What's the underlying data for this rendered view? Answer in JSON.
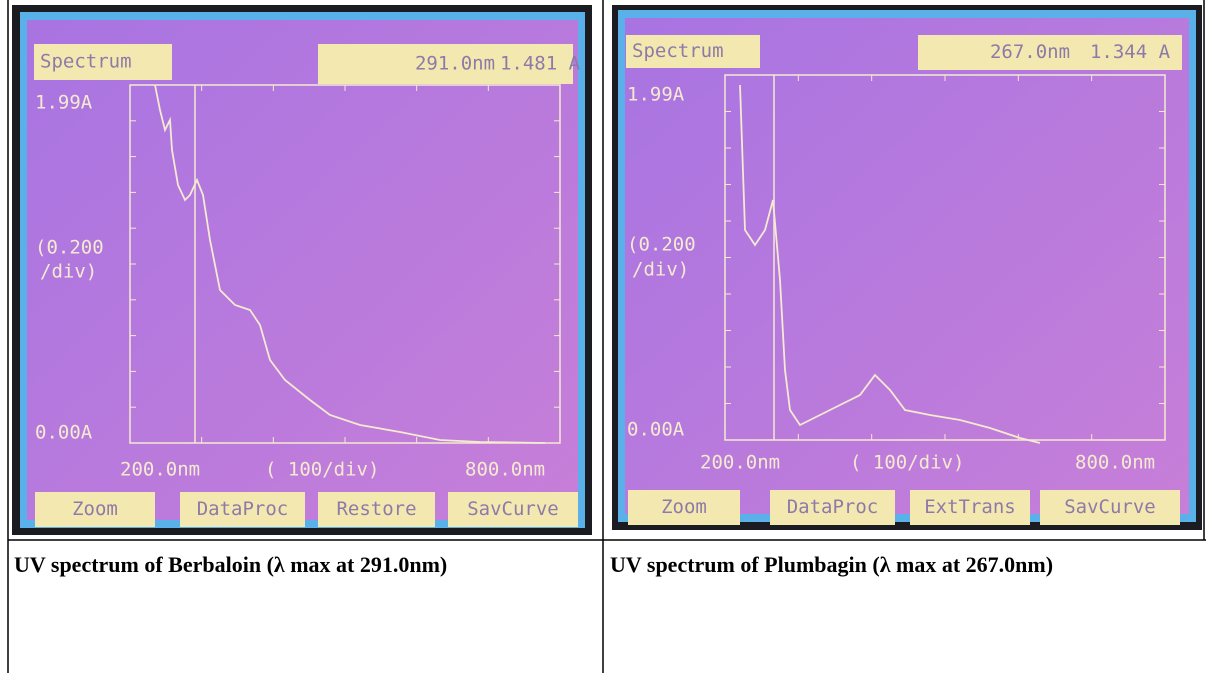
{
  "panels": [
    {
      "screen": {
        "mode": "Spectrum",
        "wavelength": "291.0nm",
        "absorbance": "1.481 A",
        "y_max": "1.99A",
        "y_scale_1": "(0.200",
        "y_scale_2": "/div)",
        "y_min": "0.00A",
        "x_min": "200.0nm",
        "x_scale": "( 100/div)",
        "x_max": "800.0nm",
        "buttons": [
          "Zoom",
          "DataProc",
          "Restore",
          "SavCurve"
        ]
      },
      "caption": "UV spectrum of Berbaloin (λ max at 291.0nm)"
    },
    {
      "screen": {
        "mode": "Spectrum",
        "wavelength": "267.0nm",
        "absorbance": "1.344 A",
        "y_max": "1.99A",
        "y_scale_1": "(0.200",
        "y_scale_2": "/div)",
        "y_min": "0.00A",
        "x_min": "200.0nm",
        "x_scale": "( 100/div)",
        "x_max": "800.0nm",
        "buttons": [
          "Zoom",
          "DataProc",
          "ExtTrans",
          "SavCurve"
        ]
      },
      "caption": "UV spectrum of Plumbagin (λ max at 267.0nm)"
    }
  ]
}
